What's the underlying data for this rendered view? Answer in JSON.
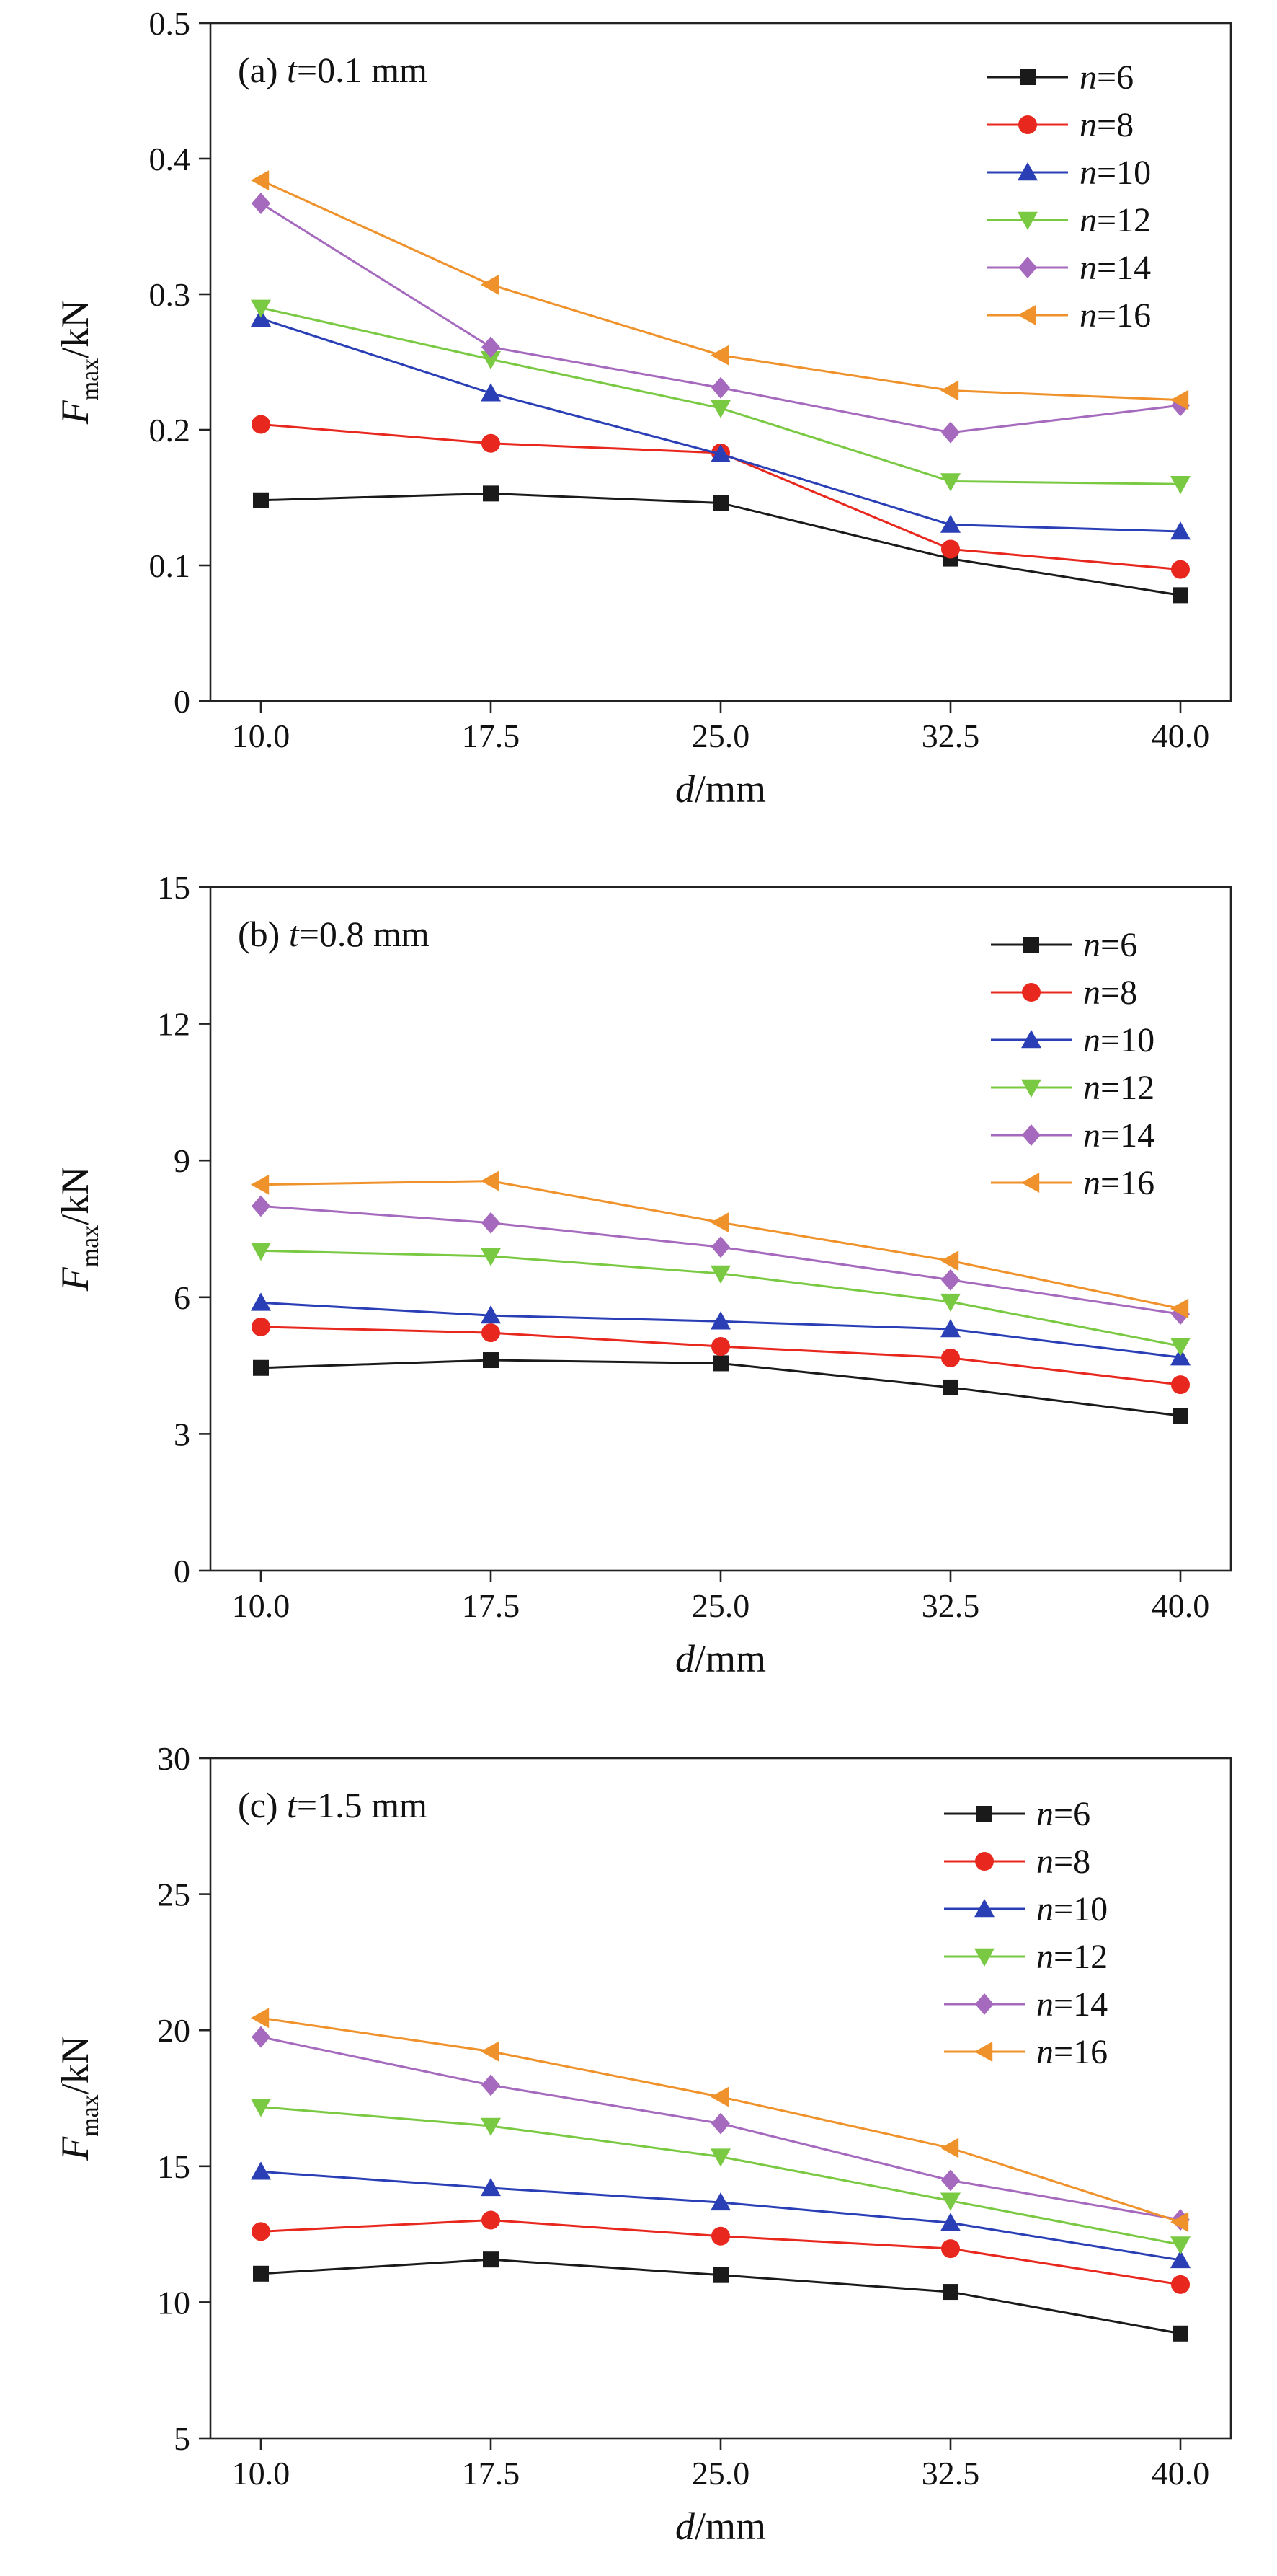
{
  "colors": {
    "n=6": "#1a1a1a",
    "n=8": "#e8281e",
    "n=10": "#2a3fb5",
    "n=12": "#7ac943",
    "n=14": "#a569bd",
    "n=16": "#f0922b"
  },
  "chart_data": [
    {
      "type": "line",
      "panel_label": "(a) ",
      "panel_var": "t",
      "panel_value": "=0.1 mm",
      "xlabel_var": "d",
      "xlabel_unit": "/mm",
      "ylabel_var": "F",
      "ylabel_sub": "max",
      "ylabel_unit": "/kN",
      "x": [
        10.0,
        17.5,
        25.0,
        32.5,
        40.0
      ],
      "x_tick_labels": [
        "10.0",
        "17.5",
        "25.0",
        "32.5",
        "40.0"
      ],
      "y_ticks": [
        0,
        0.1,
        0.2,
        0.3,
        0.4,
        0.5
      ],
      "y_tick_labels": [
        "0",
        "0.1",
        "0.2",
        "0.3",
        "0.4",
        "0.5"
      ],
      "ylim": [
        0,
        0.5
      ],
      "legend_position": "top-right",
      "series": [
        {
          "var": "n",
          "label": "=6",
          "marker": "square",
          "values": [
            0.148,
            0.153,
            0.146,
            0.105,
            0.078
          ]
        },
        {
          "var": "n",
          "label": "=8",
          "marker": "circle",
          "values": [
            0.204,
            0.19,
            0.183,
            0.112,
            0.097
          ]
        },
        {
          "var": "n",
          "label": "=10",
          "marker": "triangle-up",
          "values": [
            0.282,
            0.227,
            0.182,
            0.13,
            0.125
          ]
        },
        {
          "var": "n",
          "label": "=12",
          "marker": "triangle-down",
          "values": [
            0.29,
            0.252,
            0.216,
            0.162,
            0.16
          ]
        },
        {
          "var": "n",
          "label": "=14",
          "marker": "diamond",
          "values": [
            0.367,
            0.261,
            0.231,
            0.198,
            0.218
          ]
        },
        {
          "var": "n",
          "label": "=16",
          "marker": "triangle-left",
          "values": [
            0.384,
            0.307,
            0.255,
            0.229,
            0.222
          ]
        }
      ]
    },
    {
      "type": "line",
      "panel_label": "(b) ",
      "panel_var": "t",
      "panel_value": "=0.8 mm",
      "xlabel_var": "d",
      "xlabel_unit": "/mm",
      "ylabel_var": "F",
      "ylabel_sub": "max",
      "ylabel_unit": "/kN",
      "x": [
        10.0,
        17.5,
        25.0,
        32.5,
        40.0
      ],
      "x_tick_labels": [
        "10.0",
        "17.5",
        "25.0",
        "32.5",
        "40.0"
      ],
      "y_ticks": [
        0,
        3,
        6,
        9,
        12,
        15
      ],
      "y_tick_labels": [
        "0",
        "3",
        "6",
        "9",
        "12",
        "15"
      ],
      "ylim": [
        0,
        15
      ],
      "legend_position": "top-right",
      "series": [
        {
          "var": "n",
          "label": "=6",
          "marker": "square",
          "values": [
            4.45,
            4.62,
            4.55,
            4.02,
            3.4
          ]
        },
        {
          "var": "n",
          "label": "=8",
          "marker": "circle",
          "values": [
            5.35,
            5.22,
            4.92,
            4.67,
            4.08
          ]
        },
        {
          "var": "n",
          "label": "=10",
          "marker": "triangle-up",
          "values": [
            5.88,
            5.6,
            5.47,
            5.3,
            4.68
          ]
        },
        {
          "var": "n",
          "label": "=12",
          "marker": "triangle-down",
          "values": [
            7.02,
            6.9,
            6.52,
            5.9,
            4.93
          ]
        },
        {
          "var": "n",
          "label": "=14",
          "marker": "diamond",
          "values": [
            8.0,
            7.63,
            7.1,
            6.38,
            5.63
          ]
        },
        {
          "var": "n",
          "label": "=16",
          "marker": "triangle-left",
          "values": [
            8.47,
            8.55,
            7.64,
            6.8,
            5.75
          ]
        }
      ]
    },
    {
      "type": "line",
      "panel_label": "(c) ",
      "panel_var": "t",
      "panel_value": "=1.5 mm",
      "xlabel_var": "d",
      "xlabel_unit": "/mm",
      "ylabel_var": "F",
      "ylabel_sub": "max",
      "ylabel_unit": "/kN",
      "x": [
        10.0,
        17.5,
        25.0,
        32.5,
        40.0
      ],
      "x_tick_labels": [
        "10.0",
        "17.5",
        "25.0",
        "32.5",
        "40.0"
      ],
      "y_ticks": [
        5,
        10,
        15,
        20,
        25,
        30
      ],
      "y_tick_labels": [
        "5",
        "10",
        "15",
        "20",
        "25",
        "30"
      ],
      "ylim": [
        5,
        30
      ],
      "legend_position": "top-right",
      "series": [
        {
          "var": "n",
          "label": "=6",
          "marker": "square",
          "values": [
            11.05,
            11.57,
            11.0,
            10.38,
            8.85
          ]
        },
        {
          "var": "n",
          "label": "=8",
          "marker": "circle",
          "values": [
            12.6,
            13.02,
            12.43,
            11.97,
            10.65
          ]
        },
        {
          "var": "n",
          "label": "=10",
          "marker": "triangle-up",
          "values": [
            14.8,
            14.2,
            13.67,
            12.92,
            11.55
          ]
        },
        {
          "var": "n",
          "label": "=12",
          "marker": "triangle-down",
          "values": [
            17.18,
            16.48,
            15.35,
            13.73,
            12.12
          ]
        },
        {
          "var": "n",
          "label": "=14",
          "marker": "diamond",
          "values": [
            19.75,
            17.98,
            16.57,
            14.48,
            13.03
          ]
        },
        {
          "var": "n",
          "label": "=16",
          "marker": "triangle-left",
          "values": [
            20.45,
            19.22,
            17.55,
            15.67,
            12.95
          ]
        }
      ]
    }
  ]
}
